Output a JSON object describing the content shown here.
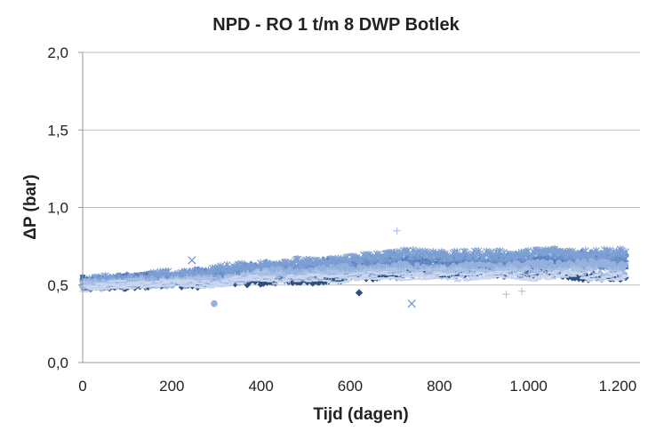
{
  "chart_data": {
    "type": "scatter",
    "title": "NPD - RO 1 t/m 8 DWP Botlek",
    "xlabel": "Tijd (dagen)",
    "ylabel": "ΔP (bar)",
    "xlim": [
      0,
      1250
    ],
    "ylim": [
      0,
      2.0
    ],
    "x_ticks": [
      0,
      200,
      400,
      600,
      800,
      1000,
      1200
    ],
    "x_tick_labels": [
      "0",
      "200",
      "400",
      "600",
      "800",
      "1.000",
      "1.200"
    ],
    "y_ticks": [
      0,
      0.5,
      1.0,
      1.5,
      2.0
    ],
    "y_tick_labels": [
      "0,0",
      "0,5",
      "1,0",
      "1,5",
      "2,0"
    ],
    "grid": "horizontal",
    "legend": "none",
    "x_range_days": [
      0,
      1220
    ],
    "series": [
      {
        "marker": "diamond",
        "color": "#2E4E7E",
        "trend": [
          [
            0,
            0.48
          ],
          [
            100,
            0.5
          ],
          [
            200,
            0.51
          ],
          [
            300,
            0.52
          ],
          [
            400,
            0.53
          ],
          [
            500,
            0.53
          ],
          [
            600,
            0.55
          ],
          [
            700,
            0.57
          ],
          [
            800,
            0.58
          ],
          [
            900,
            0.58
          ],
          [
            1000,
            0.58
          ],
          [
            1100,
            0.57
          ],
          [
            1200,
            0.55
          ]
        ]
      },
      {
        "marker": "square",
        "color": "#3F68A8",
        "trend": [
          [
            0,
            0.52
          ],
          [
            100,
            0.54
          ],
          [
            200,
            0.55
          ],
          [
            300,
            0.57
          ],
          [
            400,
            0.6
          ],
          [
            500,
            0.6
          ],
          [
            600,
            0.6
          ],
          [
            700,
            0.63
          ],
          [
            800,
            0.63
          ],
          [
            900,
            0.63
          ],
          [
            1000,
            0.64
          ],
          [
            1100,
            0.64
          ],
          [
            1200,
            0.63
          ]
        ]
      },
      {
        "marker": "triangle",
        "color": "#5B82C0",
        "trend": [
          [
            0,
            0.53
          ],
          [
            100,
            0.54
          ],
          [
            200,
            0.56
          ],
          [
            300,
            0.58
          ],
          [
            400,
            0.62
          ],
          [
            500,
            0.63
          ],
          [
            600,
            0.65
          ],
          [
            700,
            0.68
          ],
          [
            800,
            0.68
          ],
          [
            900,
            0.67
          ],
          [
            1000,
            0.68
          ],
          [
            1100,
            0.69
          ],
          [
            1200,
            0.69
          ]
        ]
      },
      {
        "marker": "x",
        "color": "#6C8FC6",
        "trend": [
          [
            0,
            0.5
          ],
          [
            100,
            0.52
          ],
          [
            200,
            0.53
          ],
          [
            300,
            0.55
          ],
          [
            400,
            0.59
          ],
          [
            500,
            0.59
          ],
          [
            600,
            0.61
          ],
          [
            700,
            0.62
          ],
          [
            800,
            0.62
          ],
          [
            900,
            0.62
          ],
          [
            1000,
            0.63
          ],
          [
            1100,
            0.64
          ],
          [
            1200,
            0.64
          ]
        ]
      },
      {
        "marker": "star",
        "color": "#7D9FD3",
        "trend": [
          [
            0,
            0.52
          ],
          [
            100,
            0.54
          ],
          [
            200,
            0.56
          ],
          [
            300,
            0.59
          ],
          [
            400,
            0.63
          ],
          [
            500,
            0.64
          ],
          [
            600,
            0.66
          ],
          [
            700,
            0.7
          ],
          [
            800,
            0.7
          ],
          [
            900,
            0.69
          ],
          [
            1000,
            0.7
          ],
          [
            1100,
            0.71
          ],
          [
            1200,
            0.7
          ]
        ]
      },
      {
        "marker": "circle",
        "color": "#94B1DD",
        "trend": [
          [
            0,
            0.5
          ],
          [
            100,
            0.51
          ],
          [
            200,
            0.52
          ],
          [
            300,
            0.52
          ],
          [
            400,
            0.57
          ],
          [
            500,
            0.58
          ],
          [
            600,
            0.6
          ],
          [
            700,
            0.61
          ],
          [
            800,
            0.6
          ],
          [
            900,
            0.61
          ],
          [
            1000,
            0.62
          ],
          [
            1100,
            0.63
          ],
          [
            1200,
            0.62
          ]
        ]
      },
      {
        "marker": "plus",
        "color": "#AEC3E6",
        "trend": [
          [
            0,
            0.5
          ],
          [
            100,
            0.51
          ],
          [
            200,
            0.52
          ],
          [
            300,
            0.53
          ],
          [
            400,
            0.56
          ],
          [
            500,
            0.56
          ],
          [
            600,
            0.57
          ],
          [
            700,
            0.59
          ],
          [
            800,
            0.58
          ],
          [
            900,
            0.58
          ],
          [
            1000,
            0.58
          ],
          [
            1100,
            0.59
          ],
          [
            1200,
            0.58
          ]
        ]
      },
      {
        "marker": "dash",
        "color": "#C9D6EE",
        "trend": [
          [
            0,
            0.49
          ],
          [
            100,
            0.5
          ],
          [
            200,
            0.51
          ],
          [
            300,
            0.51
          ],
          [
            400,
            0.54
          ],
          [
            500,
            0.54
          ],
          [
            600,
            0.55
          ],
          [
            700,
            0.56
          ],
          [
            800,
            0.55
          ],
          [
            900,
            0.56
          ],
          [
            1000,
            0.56
          ],
          [
            1100,
            0.56
          ],
          [
            1200,
            0.55
          ]
        ]
      }
    ],
    "outliers": [
      {
        "x": 245,
        "y": 0.66,
        "marker": "x",
        "color": "#6C8FC6"
      },
      {
        "x": 295,
        "y": 0.38,
        "marker": "circle",
        "color": "#94B1DD"
      },
      {
        "x": 620,
        "y": 0.45,
        "marker": "diamond",
        "color": "#2E4E7E"
      },
      {
        "x": 705,
        "y": 0.85,
        "marker": "plus",
        "color": "#AEC3E6"
      },
      {
        "x": 738,
        "y": 0.38,
        "marker": "x",
        "color": "#6C8FC6"
      },
      {
        "x": 950,
        "y": 0.44,
        "marker": "plus",
        "color": "#AEC3E6"
      },
      {
        "x": 985,
        "y": 0.46,
        "marker": "plus",
        "color": "#AEC3E6"
      }
    ],
    "colors": {
      "axis": "#999999",
      "grid": "#bfbfbf",
      "text": "#222222"
    }
  }
}
